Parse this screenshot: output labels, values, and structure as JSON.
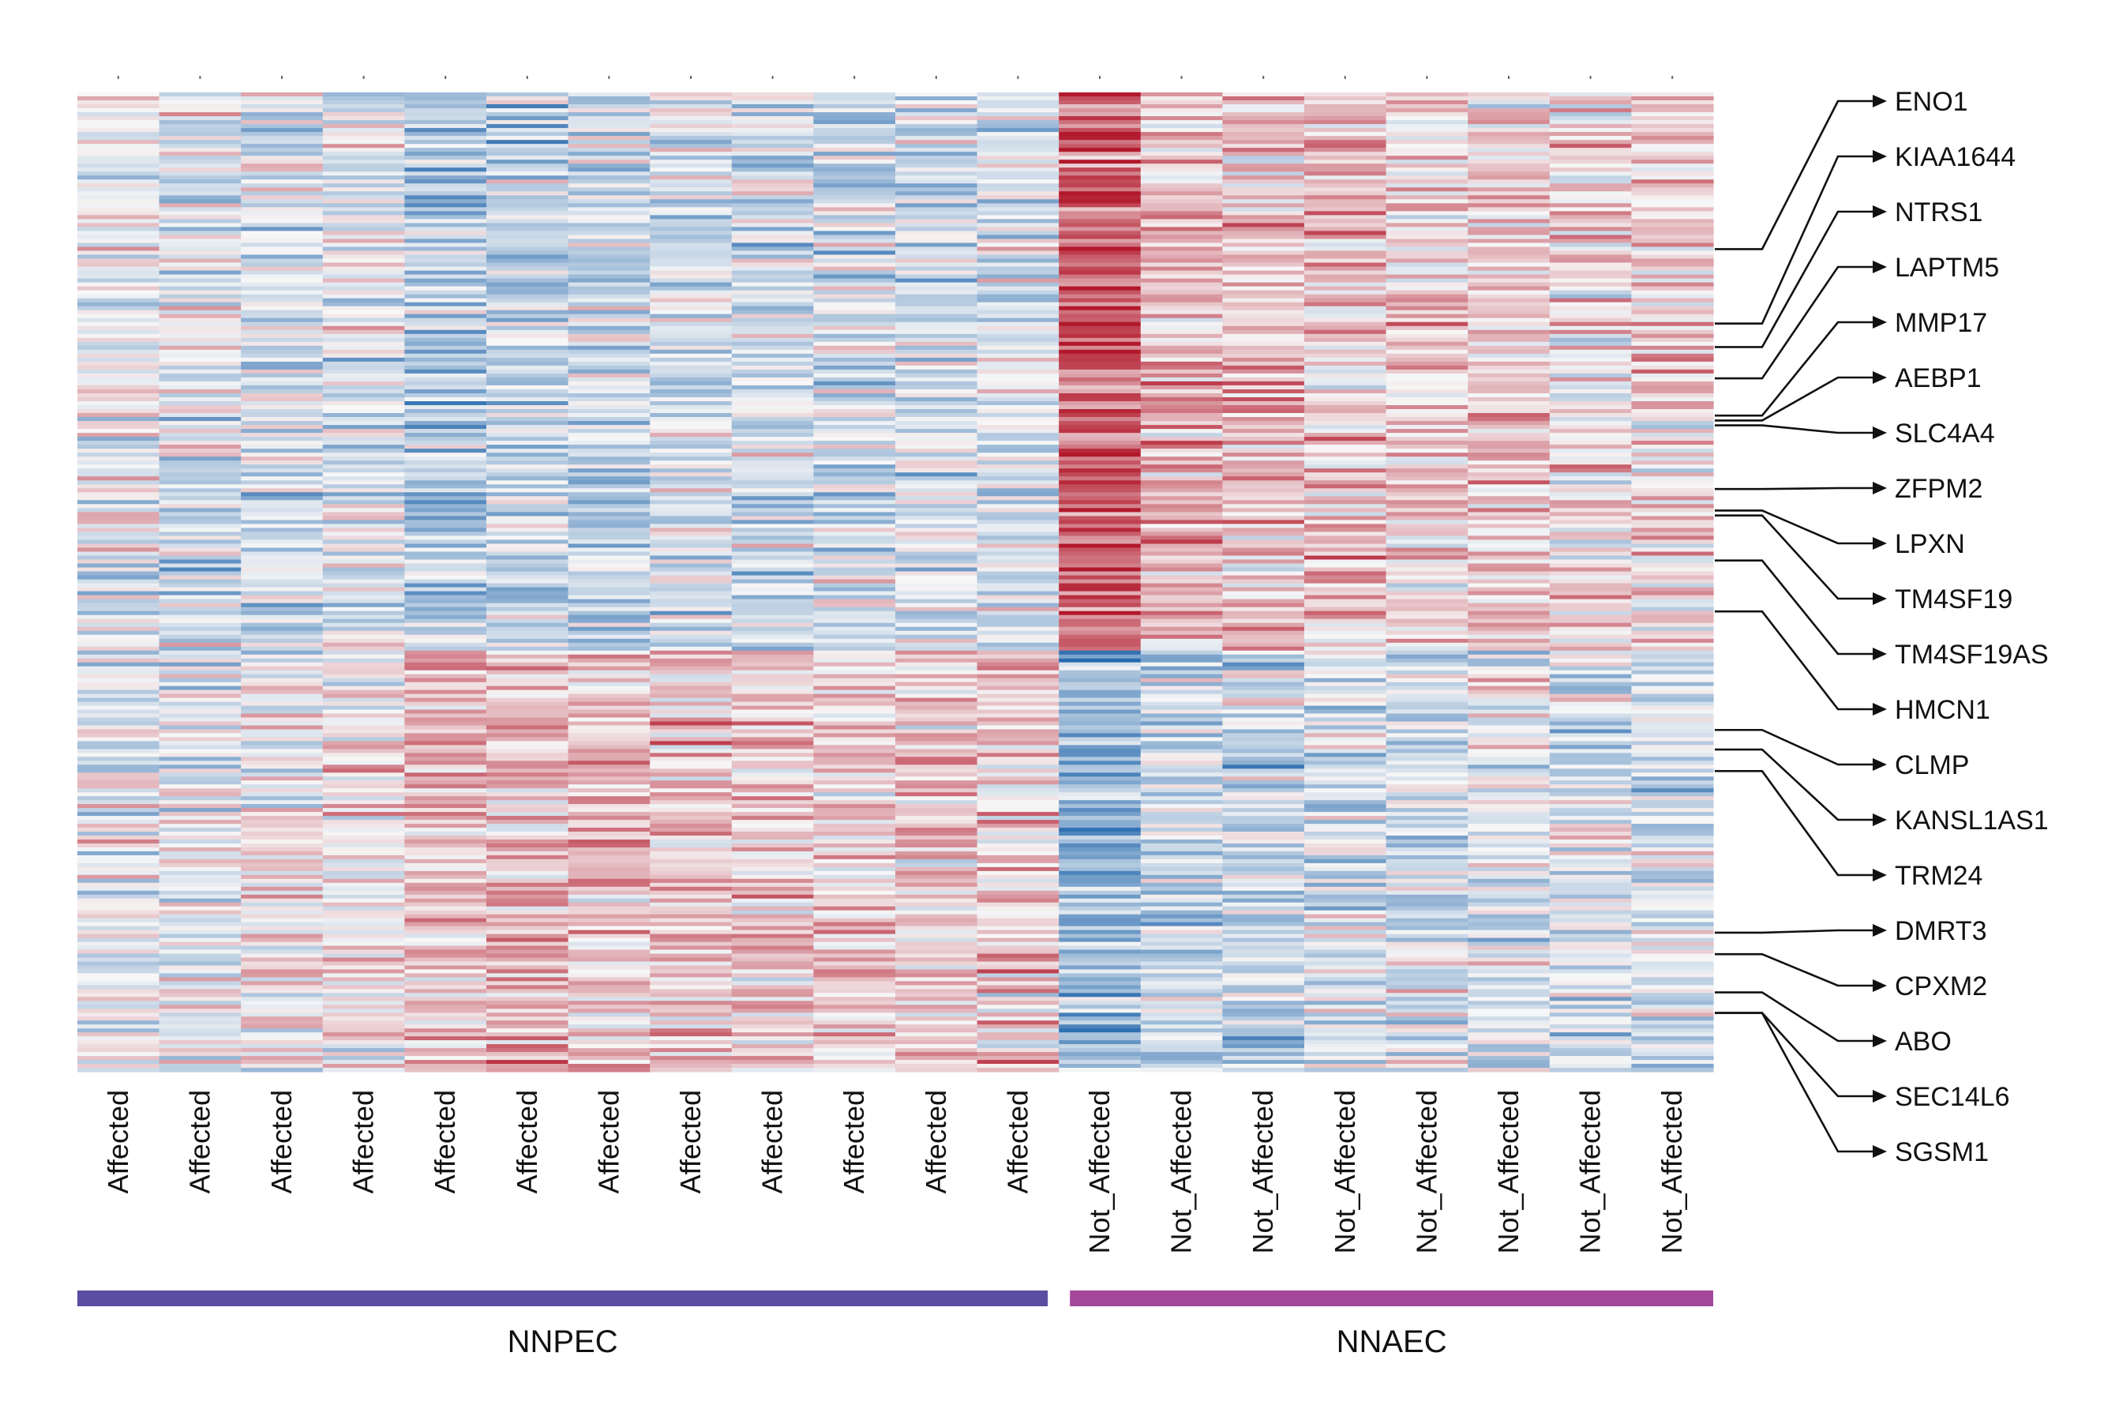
{
  "chart_data": {
    "type": "heatmap",
    "title": "",
    "xlabel": "",
    "ylabel": "",
    "columns": [
      "Affected",
      "Affected",
      "Affected",
      "Affected",
      "Affected",
      "Affected",
      "Affected",
      "Affected",
      "Affected",
      "Affected",
      "Affected",
      "Affected",
      "Not_Affected",
      "Not_Affected",
      "Not_Affected",
      "Not_Affected",
      "Not_Affected",
      "Not_Affected",
      "Not_Affected",
      "Not_Affected"
    ],
    "groups": [
      {
        "name": "NNPEC",
        "color": "#5b4ea2",
        "columns": 12
      },
      {
        "name": "NNAEC",
        "color": "#a2479a",
        "columns": 8
      }
    ],
    "row_blocks": [
      {
        "label": "",
        "rows_fraction": 0.57,
        "column_means": [
          -0.1,
          -0.25,
          -0.3,
          -0.2,
          -0.7,
          -0.6,
          -0.55,
          -0.3,
          -0.4,
          -0.35,
          -0.3,
          -0.3,
          1.5,
          0.6,
          0.55,
          0.55,
          0.4,
          0.35,
          0.2,
          0.35
        ]
      },
      {
        "label": "",
        "rows_fraction": 0.43,
        "column_means": [
          -0.1,
          -0.15,
          0.1,
          0.15,
          0.6,
          0.6,
          0.55,
          0.45,
          0.5,
          0.4,
          0.45,
          0.4,
          -1.0,
          -0.5,
          -0.5,
          -0.35,
          -0.3,
          -0.2,
          -0.25,
          -0.3
        ]
      }
    ],
    "highlighted_genes": [
      "ENO1",
      "KIAA1644",
      "NTRS1",
      "LAPTM5",
      "MMP17",
      "AEBP1",
      "SLC4A4",
      "ZFPM2",
      "LPXN",
      "TM4SF19",
      "TM4SF19AS",
      "HMCN1",
      "CLMP",
      "KANSL1AS1",
      "TRM24",
      "DMRT3",
      "CPXM2",
      "ABO",
      "SEC14L6",
      "SGSM1"
    ],
    "gene_row_positions": [
      0.16,
      0.236,
      0.26,
      0.292,
      0.33,
      0.335,
      0.34,
      0.405,
      0.427,
      0.432,
      0.478,
      0.53,
      0.651,
      0.671,
      0.693,
      0.858,
      0.88,
      0.919,
      0.94,
      0.94
    ],
    "color_scale": {
      "low": "#2166ac",
      "mid": "#f7f7f7",
      "high": "#b2182b"
    },
    "legend": "none",
    "grid": false
  }
}
